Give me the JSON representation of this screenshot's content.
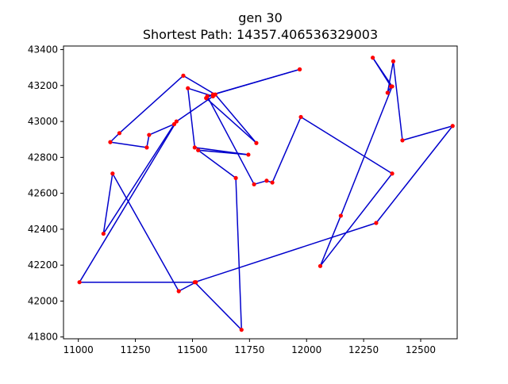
{
  "chart_data": {
    "type": "line",
    "title": "gen 30",
    "subtitle": "Shortest Path: 14357.406536329003",
    "xlabel": "",
    "ylabel": "",
    "xlim": [
      10935,
      12660
    ],
    "ylim": [
      41790,
      43420
    ],
    "xticks": [
      11000,
      11250,
      11500,
      11750,
      12000,
      12250,
      12500
    ],
    "yticks": [
      41800,
      42000,
      42200,
      42400,
      42600,
      42800,
      43000,
      43200,
      43400
    ],
    "grid": false,
    "legend": "none",
    "line_color": "#0000cc",
    "marker_color": "#ff0000",
    "path": [
      [
        11970,
        43290
      ],
      [
        11590,
        43150
      ],
      [
        11560,
        43130
      ],
      [
        11780,
        42880
      ],
      [
        11600,
        43150
      ],
      [
        11460,
        43255
      ],
      [
        11180,
        42935
      ],
      [
        11140,
        42885
      ],
      [
        11300,
        42855
      ],
      [
        11310,
        42925
      ],
      [
        11420,
        42985
      ],
      [
        11110,
        42375
      ],
      [
        11150,
        42710
      ],
      [
        11440,
        42055
      ],
      [
        11515,
        42105
      ],
      [
        11005,
        42105
      ],
      [
        11430,
        43000
      ],
      [
        11590,
        43140
      ],
      [
        11480,
        43185
      ],
      [
        11510,
        42855
      ],
      [
        11745,
        42815
      ],
      [
        11525,
        42840
      ],
      [
        11690,
        42685
      ],
      [
        11715,
        41840
      ],
      [
        11510,
        42105
      ],
      [
        12305,
        42435
      ],
      [
        12640,
        42975
      ],
      [
        12420,
        42895
      ],
      [
        12380,
        43335
      ],
      [
        12355,
        43160
      ],
      [
        12370,
        43195
      ],
      [
        12290,
        43355
      ],
      [
        12375,
        43195
      ],
      [
        12150,
        42475
      ],
      [
        12060,
        42195
      ],
      [
        12375,
        42710
      ],
      [
        11975,
        43025
      ],
      [
        11850,
        42660
      ],
      [
        11825,
        42670
      ],
      [
        11770,
        42650
      ],
      [
        11565,
        43140
      ],
      [
        11970,
        43290
      ]
    ]
  }
}
